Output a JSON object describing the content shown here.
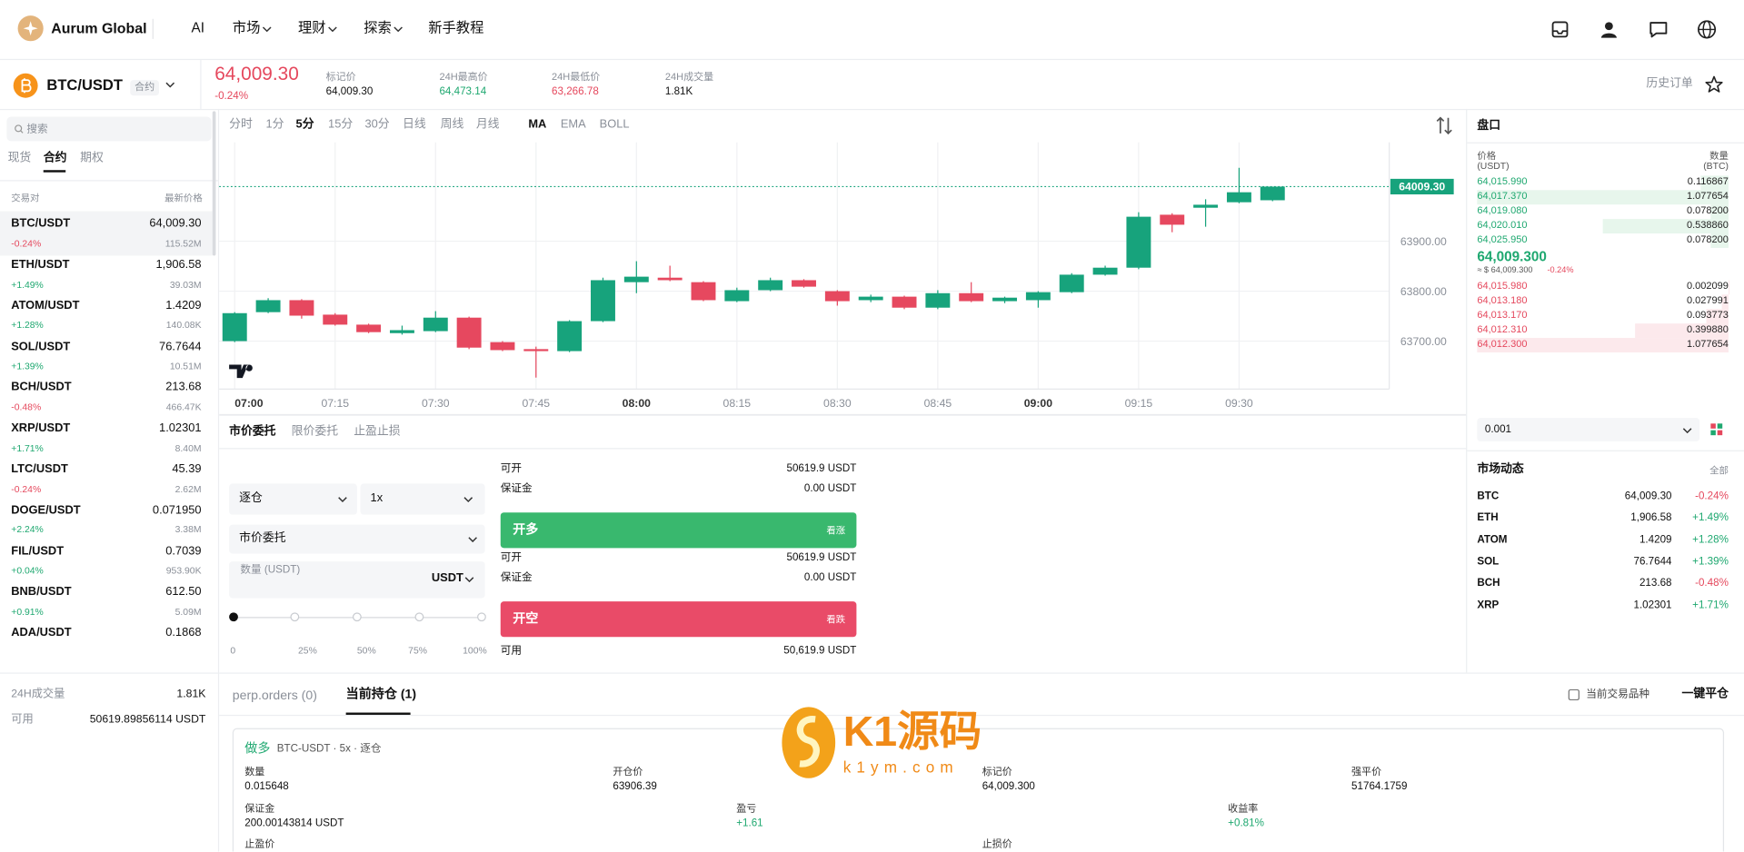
{
  "header": {
    "brand": "Aurum Global",
    "nav": [
      "AI",
      "市场",
      "理财",
      "探索",
      "新手教程"
    ]
  },
  "ticker": {
    "pair": "BTC/USDT",
    "tag": "合约",
    "price": "64,009.30",
    "change": "-0.24%",
    "stats": [
      {
        "label": "标记价",
        "value": "64,009.30"
      },
      {
        "label": "24H最高价",
        "value": "64,473.14"
      },
      {
        "label": "24H最低价",
        "value": "63,266.78"
      },
      {
        "label": "24H成交量",
        "value": "1.81K"
      }
    ],
    "history": "历史订单"
  },
  "markets": {
    "search": "搜索",
    "tabs": [
      "现货",
      "合约",
      "期权"
    ],
    "columns": [
      "交易对",
      "最新价格"
    ],
    "rows": [
      [
        "BTC/USDT",
        "64,009.30",
        "-0.24%",
        "115.52M"
      ],
      [
        "ETH/USDT",
        "1,906.58",
        "+1.49%",
        "39.03M"
      ],
      [
        "ATOM/USDT",
        "1.4209",
        "+1.28%",
        "140.08K"
      ],
      [
        "SOL/USDT",
        "76.7644",
        "+1.39%",
        "10.51M"
      ],
      [
        "BCH/USDT",
        "213.68",
        "-0.48%",
        "466.47K"
      ],
      [
        "XRP/USDT",
        "1.02301",
        "+1.71%",
        "8.40M"
      ],
      [
        "LTC/USDT",
        "45.39",
        "-0.24%",
        "2.62M"
      ],
      [
        "DOGE/USDT",
        "0.071950",
        "+2.24%",
        "3.38M"
      ],
      [
        "FIL/USDT",
        "0.7039",
        "+0.04%",
        "953.90K"
      ],
      [
        "BNB/USDT",
        "612.50",
        "+0.91%",
        "5.09M"
      ],
      [
        "ADA/USDT",
        "0.1868"
      ]
    ]
  },
  "account": {
    "rows": [
      [
        "24H成交量",
        "1.81K"
      ],
      [
        "可用",
        "50619.89856114 USDT"
      ]
    ]
  },
  "toolbar": {
    "intervals": [
      "分时",
      "1分",
      "5分",
      "15分",
      "30分",
      "日线",
      "周线",
      "月线"
    ],
    "indicators": [
      "MA",
      "EMA",
      "BOLL"
    ]
  },
  "chart_data": {
    "type": "candlestick",
    "categories": [
      "07:00",
      null,
      null,
      "07:15",
      null,
      null,
      "07:30",
      null,
      null,
      "07:45",
      null,
      null,
      "08:00",
      null,
      null,
      "08:15",
      null,
      null,
      "08:30",
      null,
      null,
      "08:45",
      null,
      null,
      "09:00",
      null,
      null,
      "09:15",
      null,
      null,
      "09:30",
      null
    ],
    "open": [
      63700,
      63758,
      63782,
      63753,
      63733,
      63716,
      63720,
      63747,
      63698,
      63684,
      63680,
      63740,
      63818,
      63827,
      63818,
      63780,
      63802,
      63822,
      63800,
      63782,
      63789,
      63767,
      63796,
      63780,
      63782,
      63798,
      63833,
      63847,
      63953,
      63967,
      63978,
      63982
    ],
    "high": [
      63758,
      63786,
      63784,
      63756,
      63735,
      63731,
      63760,
      63749,
      63700,
      63689,
      63742,
      63827,
      63860,
      63851,
      63820,
      63807,
      63827,
      63824,
      63802,
      63793,
      63791,
      63802,
      63818,
      63789,
      63800,
      63836,
      63851,
      63958,
      63956,
      63984,
      64047,
      64009.3
    ],
    "low": [
      63698,
      63756,
      63745,
      63731,
      63716,
      63713,
      63718,
      63684,
      63680,
      63627,
      63678,
      63738,
      63796,
      63820,
      63780,
      63778,
      63800,
      63807,
      63771,
      63778,
      63764,
      63764,
      63778,
      63776,
      63767,
      63796,
      63831,
      63844,
      63918,
      63929,
      63976,
      63980
    ],
    "close": [
      63756,
      63782,
      63751,
      63733,
      63718,
      63722,
      63747,
      63687,
      63682,
      63680,
      63740,
      63822,
      63829,
      63822,
      63782,
      63802,
      63822,
      63809,
      63780,
      63789,
      63767,
      63796,
      63780,
      63787,
      63798,
      63833,
      63847,
      63949,
      63933,
      63973,
      63998,
      64009.3
    ],
    "ylim": [
      63604,
      64098
    ],
    "yticks": [
      {
        "value": 63700,
        "label": "63700.00"
      },
      {
        "value": 63800,
        "label": "63800.00"
      },
      {
        "value": 63900,
        "label": "63900.00"
      }
    ],
    "last": {
      "value": 64009.3,
      "label": "64009.30"
    },
    "up_color": "#17a37c",
    "down_color": "#e6485f",
    "grid": true
  },
  "order_form": {
    "tabs": [
      "市价委托",
      "限价委托",
      "止盈止损"
    ],
    "margin_mode": "逐仓",
    "leverage": "1x",
    "order_type": "市价委托",
    "amount_placeholder": "数量 (USDT)",
    "unit": "USDT",
    "slider": [
      "0",
      "25%",
      "50%",
      "75%",
      "100%"
    ],
    "long": {
      "rows": [
        [
          "可开",
          "50619.9 USDT"
        ],
        [
          "保证金",
          "0.00 USDT"
        ]
      ],
      "button": "开多",
      "hint": "看涨"
    },
    "short": {
      "rows": [
        [
          "可开",
          "50619.9 USDT"
        ],
        [
          "保证金",
          "0.00 USDT"
        ]
      ],
      "button": "开空",
      "hint": "看跌"
    },
    "available": [
      "可用",
      "50,619.9 USDT"
    ]
  },
  "order_book": {
    "title": "盘口",
    "price_header": [
      "价格",
      "(USDT)"
    ],
    "qty_header": [
      "数量",
      "(BTC)"
    ],
    "bids": {
      "prices": [
        "64,015.990",
        "64,017.370",
        "64,019.080",
        "64,020.010",
        "64,025.950"
      ],
      "values": [
        0.116867,
        1.077654,
        0.0782,
        0.53886,
        0.0782
      ],
      "value_labels": [
        "0.116867",
        "1.077654",
        "0.078200",
        "0.538860",
        "0.078200"
      ]
    },
    "mid": {
      "price": "64,009.300",
      "usd": "≈ $ 64,009.300",
      "change": "-0.24%"
    },
    "asks": {
      "prices": [
        "64,015.980",
        "64,013.180",
        "64,013.170",
        "64,012.310",
        "64,012.300"
      ],
      "values": [
        0.002099,
        0.027991,
        0.093773,
        0.39988,
        1.077654
      ],
      "value_labels": [
        "0.002099",
        "0.027991",
        "0.093773",
        "0.399880",
        "1.077654"
      ]
    },
    "precision": "0.001"
  },
  "market_feed": {
    "title": "市场动态",
    "more": "全部",
    "rows": [
      [
        "BTC",
        "64,009.30",
        "-0.24%"
      ],
      [
        "ETH",
        "1,906.58",
        "+1.49%"
      ],
      [
        "ATOM",
        "1.4209",
        "+1.28%"
      ],
      [
        "SOL",
        "76.7644",
        "+1.39%"
      ],
      [
        "BCH",
        "213.68",
        "-0.48%"
      ],
      [
        "XRP",
        "1.02301",
        "+1.71%"
      ]
    ]
  },
  "positions": {
    "tabs": [
      "perp.orders (0)",
      "当前持仓 (1)"
    ],
    "filter": "当前交易品种",
    "close_all": "一键平仓",
    "card": {
      "side": "做多",
      "desc": "BTC-USDT · 5x · 逐仓",
      "fields": [
        {
          "label": "数量",
          "value": "0.015648"
        },
        {
          "label": "开仓价",
          "value": "63906.39"
        },
        {
          "label": "标记价",
          "value": "64,009.300"
        },
        {
          "label": "强平价",
          "value": "51764.1759"
        },
        {
          "label": "保证金",
          "value": "200.00143814 USDT"
        },
        {
          "label": "盈亏",
          "value": "+1.61"
        },
        {
          "label": "收益率",
          "value": "+0.81%"
        },
        {
          "label": "止盈价"
        },
        {
          "label": "止损价"
        }
      ]
    }
  },
  "watermark": {
    "text": "K1源码",
    "url": "k1ym.com"
  }
}
